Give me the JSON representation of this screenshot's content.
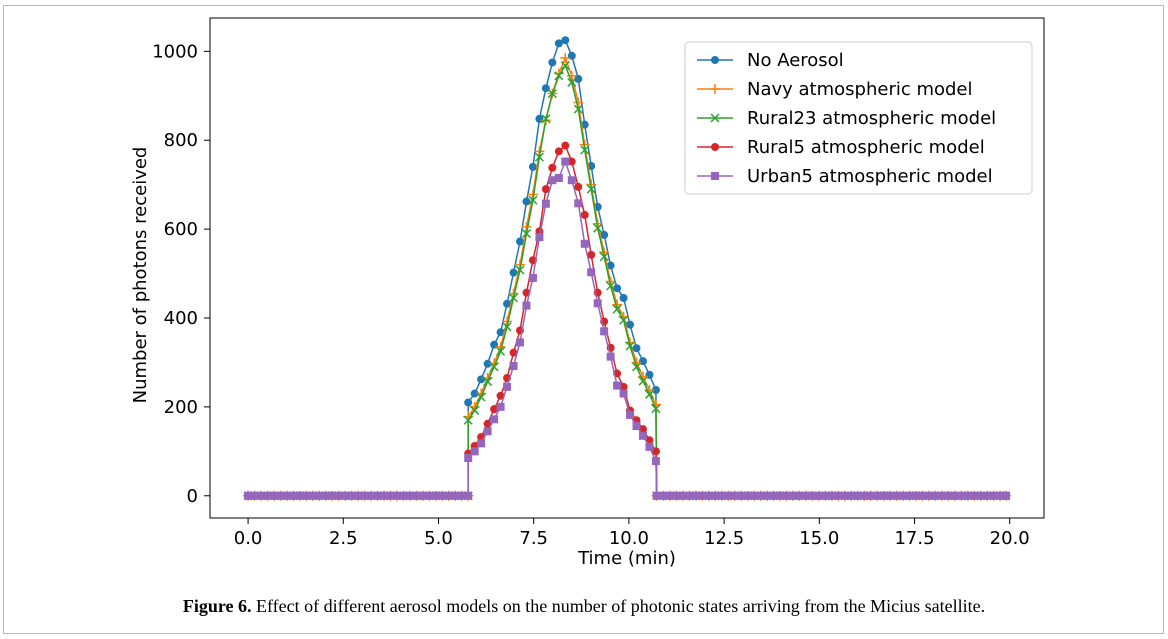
{
  "caption": {
    "label": "Figure 6.",
    "text": "Effect of different aerosol models on the number of photonic states arriving from the Micius satellite."
  },
  "chart_data": {
    "type": "line",
    "xlabel": "Time (min)",
    "ylabel": "Number of photons received",
    "xlim": [
      -1.0,
      20.9
    ],
    "ylim": [
      -50,
      1075
    ],
    "xticks": [
      0.0,
      2.5,
      5.0,
      7.5,
      10.0,
      12.5,
      15.0,
      17.5,
      20.0
    ],
    "xtick_labels": [
      "0.0",
      "2.5",
      "5.0",
      "7.5",
      "10.0",
      "12.5",
      "15.0",
      "17.5",
      "20.0"
    ],
    "yticks": [
      0,
      200,
      400,
      600,
      800,
      1000
    ],
    "ytick_labels": [
      "0",
      "200",
      "400",
      "600",
      "800",
      "1000"
    ],
    "legend_position": "top-right",
    "grid": false,
    "x": [
      5.78,
      5.95,
      6.12,
      6.29,
      6.46,
      6.63,
      6.8,
      6.97,
      7.14,
      7.31,
      7.48,
      7.65,
      7.82,
      7.99,
      8.16,
      8.33,
      8.5,
      8.67,
      8.84,
      9.01,
      9.18,
      9.35,
      9.52,
      9.69,
      9.86,
      10.03,
      10.2,
      10.37,
      10.54,
      10.71
    ],
    "series": [
      {
        "name": "No Aerosol",
        "color": "#1f77b4",
        "marker": "circle",
        "values": [
          210,
          230,
          262,
          297,
          340,
          368,
          432,
          502,
          572,
          662,
          740,
          848,
          917,
          975,
          1018,
          1025,
          990,
          938,
          835,
          742,
          650,
          587,
          518,
          467,
          445,
          385,
          332,
          303,
          272,
          238
        ]
      },
      {
        "name": "Navy atmospheric model",
        "color": "#ff7f0e",
        "marker": "plus",
        "values": [
          178,
          200,
          230,
          265,
          298,
          335,
          392,
          455,
          520,
          605,
          678,
          775,
          845,
          905,
          950,
          985,
          945,
          885,
          790,
          700,
          612,
          548,
          482,
          430,
          403,
          345,
          300,
          268,
          238,
          205
        ]
      },
      {
        "name": "Rural23 atmospheric model",
        "color": "#2ca02c",
        "marker": "x",
        "values": [
          170,
          192,
          222,
          257,
          290,
          325,
          380,
          445,
          508,
          590,
          665,
          762,
          848,
          905,
          945,
          968,
          930,
          870,
          778,
          690,
          602,
          538,
          472,
          420,
          395,
          337,
          290,
          258,
          228,
          196
        ]
      },
      {
        "name": "Rural5 atmospheric model",
        "color": "#d62728",
        "marker": "circle",
        "values": [
          95,
          112,
          132,
          162,
          195,
          225,
          265,
          322,
          372,
          457,
          530,
          595,
          690,
          738,
          775,
          788,
          752,
          695,
          632,
          542,
          457,
          392,
          333,
          275,
          245,
          192,
          170,
          150,
          125,
          100
        ]
      },
      {
        "name": "Urban5 atmospheric model",
        "color": "#9467bd",
        "marker": "square",
        "values": [
          85,
          100,
          118,
          145,
          172,
          200,
          245,
          292,
          345,
          428,
          490,
          582,
          657,
          710,
          715,
          752,
          710,
          658,
          567,
          503,
          433,
          370,
          313,
          248,
          230,
          182,
          157,
          135,
          110,
          78
        ]
      }
    ]
  }
}
